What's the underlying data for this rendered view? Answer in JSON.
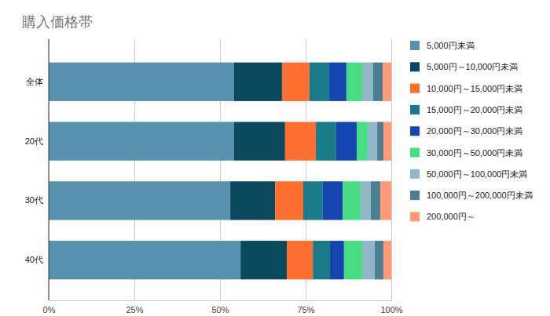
{
  "chart_data": {
    "type": "bar",
    "orientation": "horizontal",
    "stacked": true,
    "title": "購入価格帯",
    "categories": [
      "全体",
      "20代",
      "30代",
      "40代"
    ],
    "series": [
      {
        "name": "5,000円未満",
        "color": "#5891ad",
        "values": [
          54.1,
          54.1,
          53.0,
          56.0
        ]
      },
      {
        "name": "5,000円～10,000円未満",
        "color": "#0b4a5e",
        "values": [
          14.0,
          14.9,
          13.1,
          13.5
        ]
      },
      {
        "name": "10,000円～15,000円未満",
        "color": "#fd6f30",
        "values": [
          8.0,
          9.0,
          8.2,
          7.6
        ]
      },
      {
        "name": "15,000円～20,000円未満",
        "color": "#1b7a87",
        "values": [
          5.8,
          5.9,
          5.7,
          5.0
        ]
      },
      {
        "name": "20,000円～30,000円未満",
        "color": "#1546b0",
        "values": [
          5.0,
          6.0,
          5.8,
          4.1
        ]
      },
      {
        "name": "30,000円～50,000円未満",
        "color": "#48dc84",
        "values": [
          4.6,
          3.2,
          5.3,
          5.3
        ]
      },
      {
        "name": "50,000円～100,000円未満",
        "color": "#91b6c8",
        "values": [
          3.2,
          2.8,
          2.9,
          3.7
        ]
      },
      {
        "name": "100,000円～200,000円未満",
        "color": "#4b7e90",
        "values": [
          2.8,
          1.8,
          2.8,
          2.5
        ]
      },
      {
        "name": "200,000円～",
        "color": "#fe9a76",
        "values": [
          2.5,
          2.3,
          3.2,
          2.3
        ]
      }
    ],
    "xlim": [
      0,
      100
    ],
    "xticks": [
      {
        "value": 0,
        "label": "0%"
      },
      {
        "value": 25,
        "label": "25%"
      },
      {
        "value": 50,
        "label": "50%"
      },
      {
        "value": 75,
        "label": "75%"
      },
      {
        "value": 100,
        "label": "100%"
      }
    ],
    "grid": true,
    "legend": "right"
  }
}
